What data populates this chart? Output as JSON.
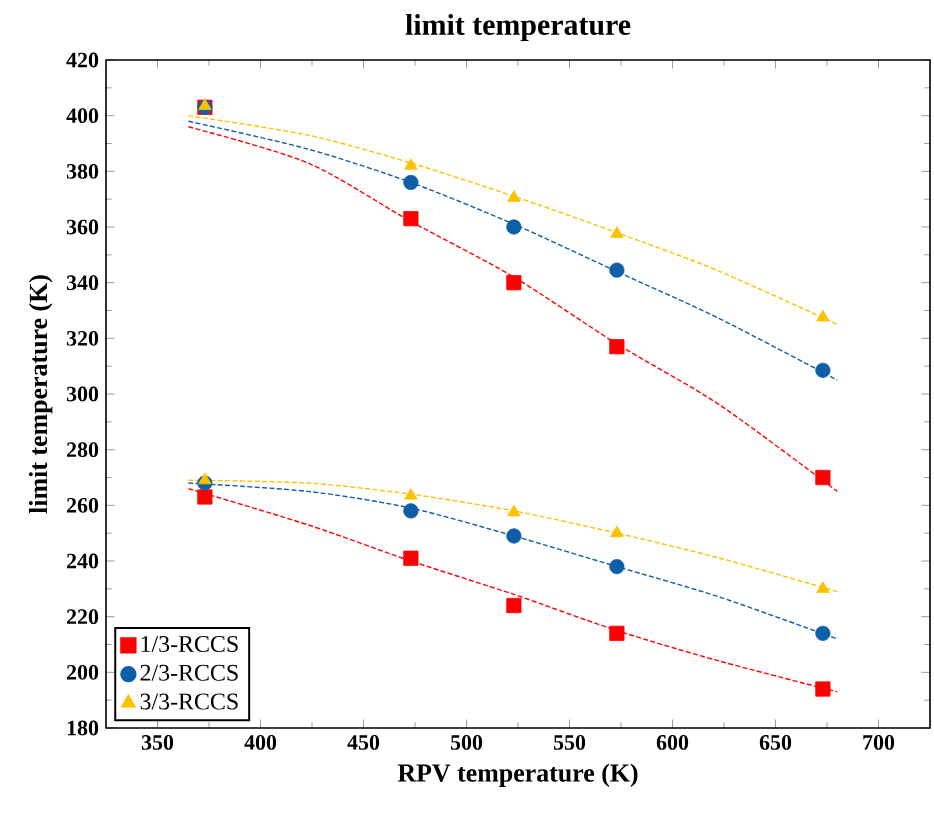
{
  "chart_data": {
    "type": "scatter",
    "title": "limit temperature",
    "xlabel": "RPV temperature (K)",
    "ylabel": "limit temperature (K)",
    "xlim": [
      325,
      725
    ],
    "xticks": [
      350,
      400,
      450,
      500,
      550,
      600,
      650,
      700
    ],
    "ylim": [
      180,
      420
    ],
    "yticks": [
      180,
      200,
      220,
      240,
      260,
      280,
      300,
      320,
      340,
      360,
      380,
      400,
      420
    ],
    "grid": false,
    "legend": "bottom left",
    "series": [
      {
        "name": "1/3-RCCS",
        "marker": "square",
        "color": "#ff0000",
        "x": [
          373,
          473,
          523,
          573,
          673
        ],
        "values": [
          403,
          363,
          340,
          317,
          270
        ]
      },
      {
        "name": "2/3-RCCS",
        "marker": "circle",
        "color": "#0f5ea8",
        "x": [
          373,
          473,
          523,
          573,
          673
        ],
        "values": [
          403,
          376,
          360,
          344.5,
          308.5
        ]
      },
      {
        "name": "3/3-RCCS",
        "marker": "triangle",
        "color": "#ffc000",
        "x": [
          373,
          473,
          523,
          573,
          673
        ],
        "values": [
          403.5,
          382,
          370.5,
          357.5,
          327.5
        ]
      },
      {
        "marker": "square",
        "color": "#ff0000",
        "x": [
          373,
          473,
          523,
          573,
          673
        ],
        "values": [
          263,
          241,
          224,
          214,
          194
        ]
      },
      {
        "marker": "circle",
        "color": "#0f5ea8",
        "x": [
          373,
          473,
          523,
          573,
          673
        ],
        "values": [
          268,
          258,
          249,
          238,
          214
        ]
      },
      {
        "marker": "triangle",
        "color": "#ffc000",
        "x": [
          373,
          473,
          523,
          573,
          673
        ],
        "values": [
          269,
          263.5,
          257.5,
          250,
          230
        ]
      },
      {
        "type": "line",
        "line_style": "dashed",
        "marker": "none",
        "color": "#ff0000",
        "x": [
          365,
          423,
          473,
          523,
          573,
          623,
          680
        ],
        "values": [
          396,
          383,
          362,
          342,
          318,
          296,
          265
        ]
      },
      {
        "type": "line",
        "line_style": "dashed",
        "marker": "none",
        "color": "#0f5ea8",
        "x": [
          365,
          423,
          473,
          523,
          573,
          623,
          680
        ],
        "values": [
          398,
          388,
          376,
          361,
          344,
          327,
          305
        ]
      },
      {
        "type": "line",
        "line_style": "dashed",
        "marker": "none",
        "color": "#ffc000",
        "x": [
          365,
          423,
          473,
          523,
          573,
          623,
          680
        ],
        "values": [
          400,
          393,
          383,
          371,
          358,
          344,
          325
        ]
      },
      {
        "type": "line",
        "line_style": "dashed",
        "marker": "none",
        "color": "#ff0000",
        "x": [
          365,
          423,
          473,
          523,
          573,
          623,
          680
        ],
        "values": [
          266,
          253,
          240,
          228,
          215,
          204,
          193
        ]
      },
      {
        "type": "line",
        "line_style": "dashed",
        "marker": "none",
        "color": "#0f5ea8",
        "x": [
          365,
          423,
          473,
          523,
          573,
          623,
          680
        ],
        "values": [
          268,
          265,
          259,
          249,
          238,
          227,
          212
        ]
      },
      {
        "type": "line",
        "line_style": "dashed",
        "marker": "none",
        "color": "#ffc000",
        "x": [
          365,
          423,
          473,
          523,
          573,
          623,
          680
        ],
        "values": [
          269,
          268,
          264,
          258,
          250,
          241,
          229
        ]
      }
    ]
  }
}
